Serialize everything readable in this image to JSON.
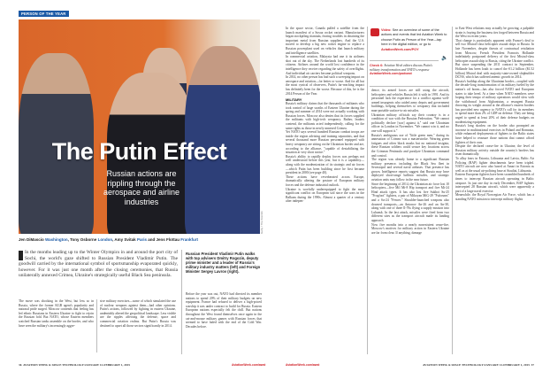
{
  "section_tag": "PERSON OF THE YEAR",
  "headline": "The Putin Effect",
  "subhead": "Russian actions are rippling through the aerospace and airline industries",
  "byline": [
    {
      "name": "Jen DiMascio",
      "city": "Washington"
    },
    {
      "name": "Tony Osborne",
      "city": "London"
    },
    {
      "name": "Amy Svitak",
      "city": "Paris"
    },
    {
      "name": "Jens Flottau",
      "city": "Frankfurt"
    }
  ],
  "byline_sep": [
    ", ",
    ", ",
    " and "
  ],
  "lead": "In the months leading up to the Winter Olympics in and around the port city of Sochi, the world's gaze shifted to Russian President Vladimir Putin. The goodwill carried by the international symbol of sportsmanship evaporated quickly, however. For it was just one month after the closing ceremonies, that Russia unilaterally annexed Crimea, Ukraine's strategically useful Black Sea peninsula.",
  "caption": "Russian President Vladimir Putin walks with top advisers Dmitry Rogozin, deputy prime minister and a leader of Russia's military industry matters (left) and Foreign Minister Sergey Lavrov (right).",
  "photo_credit": "Getty / The Kremlin",
  "left_col1": "The move was shocking in the West, but less so in Russia, where the former KGB agent's popularity and national pride surged. Moscow contends that feeling has led ethnic Russians in Eastern Ukraine to fight to rejoin the Russian fold. But NATO, whose Eastern members watched Russian tanks assemble on the border, and who have seen the military's increasingly aggre-",
  "left_col2": "sive military exercises—some of which simulated the use of nuclear weapons against them—had other opinions. Putin's actions, followed by fighting in eastern Ukraine, undeniably altered the geopolitical landscape. Less visible are the ripples affecting the defense, space and commercial aviation realms. But Putin's Russia was destined to upset all those sectors significantly in 2014.",
  "left_col3": "Before the year was out, NATO had directed its member nations to spend 20% of their military budgets on new equipment. France had refused to deliver a high-priced warship it was under contract to build for Russia. Eastern European nations especially felt the chill. But nations throughout the West found themselves once again in the cat-and-mouse military games with Russian forces that seemed to have faded with the end of the Cold War. Decades before.",
  "right_col1": [
    "In the space sector, Canada pulled a satellite from the launch manifest of a Soyuz rocket variant. Manufacturers began stockpiling titanium, fearing troubles in obtaining the important metal from Russian suppliers. And the U.S. moved to develop a big new rocket engine to replace a Russian powerplant used on vehicles that launch military and intelligence satellites.",
    "In commercial aviation, Malaysia had one it its airliners shot out of the sky. The Netherlands lost hundreds of its citizens. Airlines around the world lost confidence in the intelligence they receive regarding the safety of overflights. And individual air carriers became political weapons.",
    "In 2014, no other person has had such a sweeping impact on aerospace and aviation—for better or worse. And for all but the most cynical of observers, Putin's far-reaching impact has definitely been for the worse. Because of this, he is the 2014 Person of the Year."
  ],
  "military_heading": "MILITARY",
  "right_col1b": [
    "Russia's military claims that the thousands of militants who took control of large swaths of Eastern Ukraine during the spring and summer of 2014 were not actually working with Russian forces. Moscow also denies that its forces supplied the militants with high-tech weaponry. Rather, leaders contend, the militants acted independently, calling for the same rights as those in newly-annexed Crimea.",
    "Yet NATO says several hundred Russian combat troops are inside the region advising and training separatists, and that several thousand more Russian personnel equipped with heavy weaponry are sitting on the Ukrainian border and are, according to the alliance, \"capable of destabilizing the situation at very short notice.\"",
    "Russia's ability to rapidly deploy forces was perhaps not well understood before this year, but it is a capability—along with the modernization of its strategic and air forces—which Putin has been building since he first became president in 2000 (see page 40).",
    "These actions have reverberated across Europe, dramatically altering the posture of European military forces and the defense industrial outlook.",
    "Ukraine is woefully underequipped to fight the most significant conflict on European soil since the wars in the Balkans during the 1990s. Almost a quarter of a century after indepen-"
  ],
  "video_box": {
    "label": "Video:",
    "text": "See an overview of some of the actions and events that led Aviation Week to choose Putin as Person of the Year—tap here in the digital edition, or go to",
    "link": "AviationWeek.com/POY",
    "check_label": "Check 6:",
    "check_text": "Aviation Week editors discuss Putin's military transformation and NATO's response",
    "check_link": "AviationWeek.com/podcast"
  },
  "right_col2": [
    "dence, its armed forces are still using the aircraft, helicopters and vehicles Russia left it with in 1991. And its personnel lack the experience for a conflict against well-armed insurgents who raided army depots and government buildings, helping themselves to weaponry that included man-portable surface-to-air missiles.",
    "Ukrainian military officials say their country is in a condition of war with the Russian Federation. \"We cannot politically declare [war] against it,\" said one Ukrainian officer in London in November. \"We cannot win it, and no one will support it.\"",
    "Russia's ambiguous use of \"little green men,\" during its annexation of Crimea was a masterstroke. Wearing green fatigues and often black masks but no national insignia, these Russian soldiers could secure key locations across the Crimean Peninsula and paralyze Ukrainian command and control.",
    "The region was already home to a significant Russian military presence, including the Black Sea fleet in Sevastopol and several naval airbases. That presence has grown. Intelligence reports suggest that Russia may have deployed short-range ballistic missiles, and strategic aviation units may follow in the near future.",
    "Since the beginning of 2014, the Ukrainian air force lost 10 helicopters—five Mil Mi-8 Hip transport and five Mi-24 Hind attack types. It has also lost five Sukhoi Su-25 \"Frogfoot\" fighters, a pair of Mikoyan MiG-29 \"Fulcrums\" and a Su-24 \"Fencer.\" Shoulder-launched weapons also downed transports—an Antonov An-26 and an An-30, along with one of three Il-76s flying a supply mission into Luhansk. In the last attack, missiles were fired from two different sites as the transport aircraft made its landing approach.",
    "Now five months into a nearly nonexistent cease-fire, Moscow's motives for military action in Eastern Ukraine are far from clear. If anything, damage"
  ],
  "right_col3": [
    "to East-West relations may actually be growing; a palpable strain is fraying the business ties forged between Russia and the West in recent years.",
    "That change is particularly apparent with France's deal to sell two Mistral-class helicopter assault ships to Russia. In late November, despite threats of contractual retaliation from Moscow, French President Francois Hollande indefinitely postponed delivery of the first Mistral-class helicopter assault ship to Russia, citing the Ukraine conflict. But since suspending the 2011 contract in September, Hollande has been loath to cancel the €1.2 billion ($1.52 billion) Mistral deal with majority-state-owned shipbuilder DCNS, which has suffered anemic growth in 2014.",
    "Russia's buildup along the Ukrainian border—coupled with the decade-long transformation of its military fueled by the nation's oil boom—has also forced NATO and European states to take heed. At a time when NATO members were hoping their tempo of military operations would slow with the withdrawal from Afghanistan, a resurgent Russia throwing its weight around at the alliance's eastern borders has provided new urgency to NATO's call for its members to spend more than 2% of GDP on defense. They are being urged to spend at least 20% of their defense budgets on modernizing equipment.",
    "Russia's long shadow on the border also prompted an increase in multinational exercises in Poland and Romania, while enhanced deployments of fighters to the Baltic states have helped to reassure those nations that cannot afford fighters of their own.",
    "Despite the declared cease-fire in Ukraine, the level of Russian military activity outside the country's borders has risen dramatically.",
    "To allay fears in Estonia, Lithuania and Latvia, Baltic Air Policing (BAP) fighter detachments have been tripled. NATO aircraft are now also based at Amari in Estonia as well as at the usual air-policing base at Siauliai, Lithuania.",
    "Eastern European fighters have been scrambled hundreds of times to intercept Russian aircraft operating in Baltic airspace. In just one day in early December, BAP fighters intercepted 28 Russian aircraft, which were apparently a part of a large naval exercise.",
    "Meanwhile, the Royal Norwegian Air Force, which has a standing NATO mission to intercept military flights"
  ],
  "footer_left": {
    "page": "36",
    "pub": "AVIATION WEEK & SPACE TECHNOLOGY/JANUARY 12-FEBRUARY 1, 2015",
    "link": "AviationWeek.com/awst"
  },
  "footer_right": {
    "page": "37",
    "pub": "AVIATION WEEK & SPACE TECHNOLOGY/JANUARY 12-FEBRUARY 1, 2015",
    "link": "AviationWeek.com/awst"
  },
  "colors": {
    "accent_blue": "#1c5aa6",
    "link_red": "#d0232a"
  }
}
